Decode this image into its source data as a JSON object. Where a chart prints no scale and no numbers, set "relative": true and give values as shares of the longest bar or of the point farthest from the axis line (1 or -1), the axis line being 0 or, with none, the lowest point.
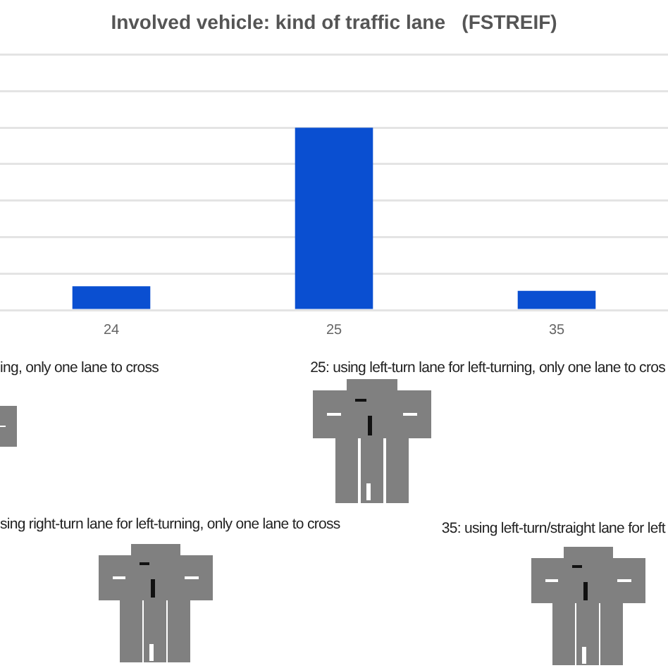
{
  "chart_data": {
    "type": "bar",
    "title": "Involved vehicle: kind of traffic lane   (FSTREIF)",
    "categories": [
      "24",
      "25",
      "35"
    ],
    "values": [
      0.13,
      1,
      0.105
    ],
    "color": "#0a4fd1",
    "relative": true,
    "grid": "y",
    "annotations": [
      "ing, only one lane to cross",
      "25: using left-turn lane for left-turning, only one lane to cros",
      "sing right-turn lane for left-turning, only one lane to cross",
      "35: using left-turn/straight lane for left"
    ]
  }
}
